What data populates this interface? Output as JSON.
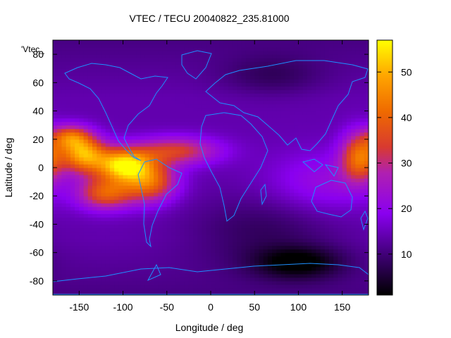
{
  "chart_data": {
    "type": "heatmap",
    "title": "VTEC / TECU 20040822_235.81000",
    "xlabel": "Longitude / deg",
    "ylabel": "Latitude / deg",
    "legend_label": "'Vtec_",
    "xlim": [
      -180,
      180
    ],
    "ylim": [
      -90,
      90
    ],
    "x_ticks": [
      -150,
      -100,
      -50,
      0,
      50,
      100,
      150
    ],
    "y_ticks": [
      -80,
      -60,
      -40,
      -20,
      0,
      20,
      40,
      60,
      80
    ],
    "colorbar": {
      "range": [
        1,
        57
      ],
      "ticks": [
        10,
        20,
        30,
        40,
        50
      ],
      "palette": "black-purple-red-orange-yellow"
    },
    "grid_lon_step": 5,
    "grid_lat_step": 2.5,
    "coastline_color": "#1e90ff",
    "blobs": [
      {
        "lon": -100,
        "lat": 2,
        "value": 52,
        "sigma_lon": 22,
        "sigma_lat": 8
      },
      {
        "lon": -145,
        "lat": 10,
        "value": 47,
        "sigma_lon": 18,
        "sigma_lat": 9
      },
      {
        "lon": -70,
        "lat": -10,
        "value": 40,
        "sigma_lon": 22,
        "sigma_lat": 10
      },
      {
        "lon": -120,
        "lat": -18,
        "value": 38,
        "sigma_lon": 22,
        "sigma_lat": 8
      },
      {
        "lon": -40,
        "lat": 12,
        "value": 34,
        "sigma_lon": 35,
        "sigma_lat": 7
      },
      {
        "lon": 170,
        "lat": 8,
        "value": 40,
        "sigma_lon": 15,
        "sigma_lat": 12
      },
      {
        "lon": -160,
        "lat": 22,
        "value": 35,
        "sigma_lon": 15,
        "sigma_lat": 6
      },
      {
        "lon": 130,
        "lat": -10,
        "value": 22,
        "sigma_lon": 45,
        "sigma_lat": 15
      }
    ],
    "dark_regions": [
      {
        "lon": 100,
        "lat": -67,
        "value": -12,
        "sigma_lon": 35,
        "sigma_lat": 8
      },
      {
        "lon": 60,
        "lat": -45,
        "value": -6,
        "sigma_lon": 60,
        "sigma_lat": 18
      },
      {
        "lon": 70,
        "lat": 65,
        "value": -5,
        "sigma_lon": 40,
        "sigma_lat": 10
      }
    ],
    "base_value": 14
  }
}
